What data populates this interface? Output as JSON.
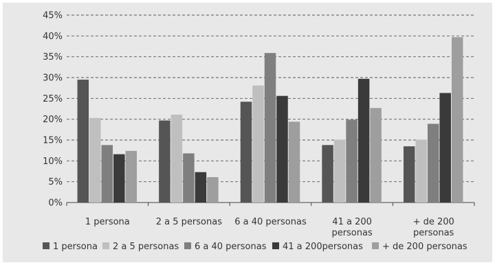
{
  "chart_data": {
    "type": "bar",
    "title": "",
    "xlabel": "",
    "ylabel": "",
    "ylim": [
      0,
      45
    ],
    "y_tick_step": 5,
    "y_tick_suffix": "%",
    "grid": "horizontal dashed",
    "legend_position": "bottom",
    "background_color": "#e8e8e8",
    "categories": [
      [
        "1 persona"
      ],
      [
        "2 a 5 personas"
      ],
      [
        "6 a 40 personas"
      ],
      [
        "41 a 200",
        "personas"
      ],
      [
        "+ de 200",
        "personas"
      ]
    ],
    "series": [
      {
        "name": "1 persona",
        "color": "#555555",
        "values": [
          29.5,
          19.7,
          24.2,
          13.8,
          13.5
        ]
      },
      {
        "name": "2 a 5 personas",
        "color": "#bfbfbf",
        "values": [
          20.3,
          21.1,
          28.1,
          15.1,
          15.1
        ]
      },
      {
        "name": "6 a 40 personas",
        "color": "#7f7f7f",
        "values": [
          13.8,
          11.8,
          35.9,
          19.9,
          18.9
        ]
      },
      {
        "name": "41 a 200personas",
        "color": "#3a3a3a",
        "values": [
          11.6,
          7.3,
          25.6,
          29.7,
          26.3
        ]
      },
      {
        "name": "+ de 200 personas",
        "color": "#9e9e9e",
        "values": [
          12.4,
          6.1,
          19.4,
          22.7,
          39.7
        ]
      }
    ]
  }
}
